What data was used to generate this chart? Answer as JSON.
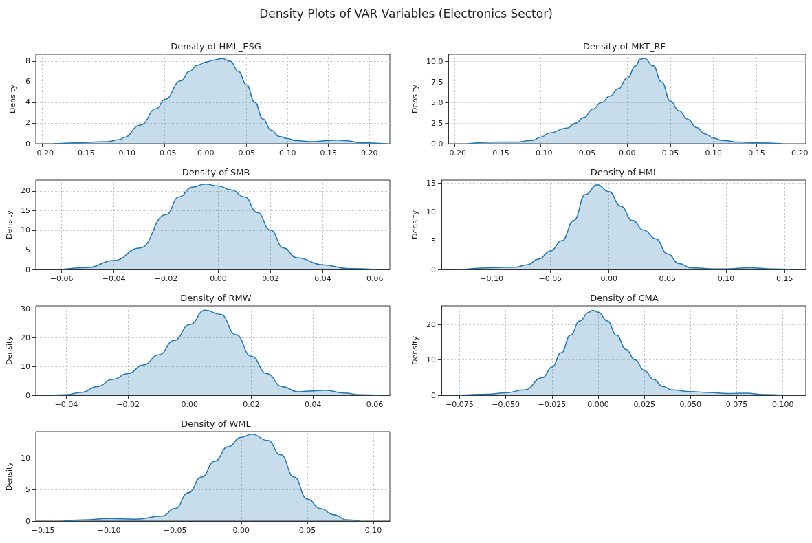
{
  "chart_data": [
    {
      "type": "area",
      "title": "Density of HML_ESG",
      "ylabel": "Density",
      "annotations": [
        "Density Plots of VAR Variables (Electronics Sector)"
      ],
      "grid": true,
      "color": "#1f77b4",
      "xlim": [
        -0.2076,
        0.225
      ],
      "xticks": [
        {
          "value": -0.2,
          "label": "−0.20"
        },
        {
          "value": -0.15,
          "label": "−0.15"
        },
        {
          "value": -0.1,
          "label": "−0.10"
        },
        {
          "value": -0.05,
          "label": "−0.05"
        },
        {
          "value": 0,
          "label": "0.00"
        },
        {
          "value": 0.05,
          "label": "0.05"
        },
        {
          "value": 0.1,
          "label": "0.10"
        },
        {
          "value": 0.15,
          "label": "0.15"
        },
        {
          "value": 0.2,
          "label": "0.20"
        }
      ],
      "ylim": [
        0,
        8.66
      ],
      "yticks": [
        0,
        2,
        4,
        6,
        8
      ],
      "x": [
        -0.185,
        -0.15,
        -0.14,
        -0.12,
        -0.105,
        -0.1,
        -0.08,
        -0.06,
        -0.05,
        -0.03,
        -0.02,
        -0.01,
        0,
        0.01,
        0.02,
        0.03,
        0.04,
        0.05,
        0.06,
        0.07,
        0.08,
        0.09,
        0.1,
        0.11,
        0.13,
        0.15,
        0.16,
        0.17,
        0.19,
        0.22
      ],
      "values": [
        0,
        0.1,
        0.15,
        0.2,
        0.4,
        0.6,
        1.8,
        3.4,
        4.3,
        6.1,
        7.0,
        7.6,
        7.9,
        8.1,
        8.25,
        8.0,
        7.0,
        5.7,
        4.0,
        2.4,
        1.3,
        0.7,
        0.5,
        0.3,
        0.2,
        0.3,
        0.35,
        0.3,
        0.1,
        0
      ]
    },
    {
      "type": "area",
      "title": "Density of MKT_RF",
      "ylabel": "Density",
      "grid": true,
      "color": "#1f77b4",
      "xlim": [
        -0.207,
        0.207
      ],
      "xticks": [
        {
          "value": -0.2,
          "label": "−0.20"
        },
        {
          "value": -0.15,
          "label": "−0.15"
        },
        {
          "value": -0.1,
          "label": "−0.10"
        },
        {
          "value": -0.05,
          "label": "−0.05"
        },
        {
          "value": 0,
          "label": "0.00"
        },
        {
          "value": 0.05,
          "label": "0.05"
        },
        {
          "value": 0.1,
          "label": "0.10"
        },
        {
          "value": 0.15,
          "label": "0.15"
        },
        {
          "value": 0.2,
          "label": "0.20"
        }
      ],
      "ylim": [
        0,
        10.9
      ],
      "yticks": [
        {
          "value": 0,
          "label": "0.0"
        },
        {
          "value": 2.5,
          "label": "2.5"
        },
        {
          "value": 5,
          "label": "5.0"
        },
        {
          "value": 7.5,
          "label": "7.5"
        },
        {
          "value": 10,
          "label": "10.0"
        }
      ],
      "x": [
        -0.185,
        -0.15,
        -0.13,
        -0.11,
        -0.1,
        -0.09,
        -0.07,
        -0.06,
        -0.05,
        -0.04,
        -0.03,
        -0.02,
        -0.01,
        0,
        0.01,
        0.015,
        0.02,
        0.03,
        0.04,
        0.05,
        0.06,
        0.07,
        0.08,
        0.09,
        0.1,
        0.11,
        0.13,
        0.15,
        0.18
      ],
      "values": [
        0,
        0.2,
        0.2,
        0.4,
        0.8,
        1.3,
        1.9,
        2.5,
        3.2,
        4.2,
        5.0,
        5.8,
        6.7,
        8.0,
        9.5,
        10.3,
        10.4,
        9.5,
        7.5,
        5.2,
        4.0,
        3.0,
        2.0,
        1.2,
        0.7,
        0.4,
        0.2,
        0.1,
        0
      ]
    },
    {
      "type": "area",
      "title": "Density of SMB",
      "ylabel": "Density",
      "grid": true,
      "color": "#1f77b4",
      "xlim": [
        -0.0699,
        0.0657
      ],
      "xticks": [
        {
          "value": -0.06,
          "label": "−0.06"
        },
        {
          "value": -0.04,
          "label": "−0.04"
        },
        {
          "value": -0.02,
          "label": "−0.02"
        },
        {
          "value": 0,
          "label": "0.00"
        },
        {
          "value": 0.02,
          "label": "0.02"
        },
        {
          "value": 0.04,
          "label": "0.04"
        },
        {
          "value": 0.06,
          "label": "0.06"
        }
      ],
      "ylim": [
        0,
        22.8
      ],
      "yticks": [
        0,
        5,
        10,
        15,
        20
      ],
      "x": [
        -0.06,
        -0.05,
        -0.04,
        -0.03,
        -0.02,
        -0.015,
        -0.01,
        -0.005,
        0,
        0.005,
        0.01,
        0.015,
        0.02,
        0.025,
        0.03,
        0.04,
        0.05,
        0.06
      ],
      "values": [
        0,
        0.5,
        2.3,
        5.5,
        14,
        18.5,
        21,
        21.8,
        21.3,
        20.3,
        18.5,
        14.5,
        10,
        5.5,
        3,
        1.2,
        0.2,
        0
      ]
    },
    {
      "type": "area",
      "title": "Density of HML",
      "ylabel": "Density",
      "grid": true,
      "color": "#1f77b4",
      "xlim": [
        -0.143,
        0.168
      ],
      "xticks": [
        {
          "value": -0.1,
          "label": "−0.10"
        },
        {
          "value": -0.05,
          "label": "−0.05"
        },
        {
          "value": 0,
          "label": "0.00"
        },
        {
          "value": 0.05,
          "label": "0.05"
        },
        {
          "value": 0.1,
          "label": "0.10"
        },
        {
          "value": 0.15,
          "label": "0.15"
        }
      ],
      "ylim": [
        0,
        15.5
      ],
      "yticks": [
        0,
        5,
        10,
        15
      ],
      "x": [
        -0.125,
        -0.1,
        -0.08,
        -0.07,
        -0.06,
        -0.05,
        -0.04,
        -0.03,
        -0.02,
        -0.01,
        0,
        0.01,
        0.02,
        0.03,
        0.04,
        0.05,
        0.06,
        0.07,
        0.09,
        0.1,
        0.12,
        0.14,
        0.155
      ],
      "values": [
        0,
        0.3,
        0.4,
        0.8,
        1.8,
        3.2,
        5.0,
        8.5,
        13,
        14.7,
        13.5,
        11,
        8.5,
        6.8,
        5.3,
        2.7,
        1.0,
        0.3,
        0.1,
        0.1,
        0.3,
        0.1,
        0
      ]
    },
    {
      "type": "area",
      "title": "Density of RMW",
      "ylabel": "Density",
      "grid": true,
      "color": "#1f77b4",
      "xlim": [
        -0.0499,
        0.0649
      ],
      "xticks": [
        {
          "value": -0.04,
          "label": "−0.04"
        },
        {
          "value": -0.02,
          "label": "−0.02"
        },
        {
          "value": 0,
          "label": "0.00"
        },
        {
          "value": 0.02,
          "label": "0.02"
        },
        {
          "value": 0.04,
          "label": "0.04"
        },
        {
          "value": 0.06,
          "label": "0.06"
        }
      ],
      "ylim": [
        0,
        31
      ],
      "yticks": [
        0,
        10,
        20,
        30
      ],
      "x": [
        -0.045,
        -0.04,
        -0.035,
        -0.03,
        -0.025,
        -0.02,
        -0.015,
        -0.01,
        -0.005,
        0,
        0.005,
        0.01,
        0.015,
        0.02,
        0.025,
        0.03,
        0.035,
        0.04,
        0.044,
        0.05,
        0.055,
        0.062
      ],
      "values": [
        0,
        0.2,
        1,
        3,
        5.5,
        7.5,
        10.5,
        14,
        19,
        24.5,
        29.5,
        28,
        21,
        13.5,
        7.5,
        3,
        1.2,
        1.5,
        1.7,
        0.8,
        0.2,
        0
      ]
    },
    {
      "type": "area",
      "title": "Density of CMA",
      "ylabel": "Density",
      "grid": true,
      "color": "#1f77b4",
      "xlim": [
        -0.0849,
        0.1124
      ],
      "xticks": [
        {
          "value": -0.075,
          "label": "−0.075"
        },
        {
          "value": -0.05,
          "label": "−0.050"
        },
        {
          "value": -0.025,
          "label": "−0.025"
        },
        {
          "value": 0,
          "label": "0.000"
        },
        {
          "value": 0.025,
          "label": "0.025"
        },
        {
          "value": 0.05,
          "label": "0.050"
        },
        {
          "value": 0.075,
          "label": "0.075"
        },
        {
          "value": 0.1,
          "label": "0.100"
        }
      ],
      "ylim": [
        0,
        25.3
      ],
      "yticks": [
        0,
        10,
        20
      ],
      "x": [
        -0.075,
        -0.06,
        -0.05,
        -0.04,
        -0.03,
        -0.025,
        -0.02,
        -0.015,
        -0.01,
        -0.005,
        -0.003,
        0,
        0.005,
        0.01,
        0.015,
        0.02,
        0.025,
        0.03,
        0.035,
        0.04,
        0.05,
        0.06,
        0.07,
        0.08,
        0.09,
        0.1
      ],
      "values": [
        0,
        0.3,
        0.7,
        1.5,
        5,
        8,
        12,
        17,
        21,
        23.5,
        24,
        23.5,
        21,
        17,
        13,
        10,
        7,
        4.5,
        2.5,
        1.5,
        1,
        0.8,
        0.5,
        0.6,
        0.2,
        0
      ]
    },
    {
      "type": "area",
      "title": "Density of WML",
      "ylabel": "Density",
      "grid": true,
      "color": "#1f77b4",
      "xlim": [
        -0.1555,
        0.1125
      ],
      "xticks": [
        {
          "value": -0.15,
          "label": "−0.15"
        },
        {
          "value": -0.1,
          "label": "−0.10"
        },
        {
          "value": -0.05,
          "label": "−0.05"
        },
        {
          "value": 0,
          "label": "0.00"
        },
        {
          "value": 0.05,
          "label": "0.05"
        },
        {
          "value": 0.1,
          "label": "0.10"
        }
      ],
      "ylim": [
        0,
        14.2
      ],
      "yticks": [
        0,
        5,
        10
      ],
      "x": [
        -0.135,
        -0.12,
        -0.1,
        -0.08,
        -0.06,
        -0.05,
        -0.04,
        -0.03,
        -0.02,
        -0.01,
        0,
        0.008,
        0.02,
        0.03,
        0.04,
        0.05,
        0.06,
        0.07,
        0.08,
        0.09
      ],
      "values": [
        0,
        0.2,
        0.4,
        0.3,
        0.8,
        2,
        4.5,
        7,
        9.5,
        11.8,
        13.3,
        13.8,
        12.8,
        10.5,
        7,
        3.5,
        2,
        1,
        0.2,
        0
      ]
    }
  ]
}
